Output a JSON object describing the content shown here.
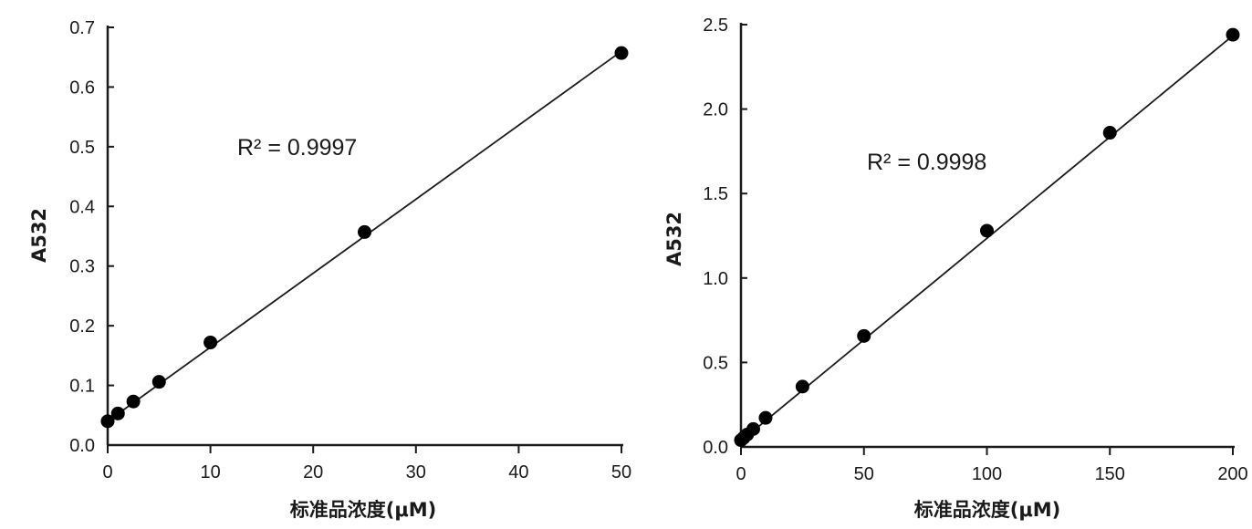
{
  "chart_data": [
    {
      "type": "scatter",
      "xlabel": "标准品浓度(μM)",
      "ylabel": "A532",
      "annotation": "R² = 0.9997",
      "xlim": [
        0,
        50
      ],
      "ylim": [
        0,
        0.7
      ],
      "x_ticks": [
        0,
        10,
        20,
        30,
        40,
        50
      ],
      "x_tick_labels": [
        "0",
        "10",
        "20",
        "30",
        "40",
        "50"
      ],
      "y_ticks": [
        0,
        0.1,
        0.2,
        0.3,
        0.4,
        0.5,
        0.6,
        0.7
      ],
      "y_tick_labels": [
        "0.0",
        "0.1",
        "0.2",
        "0.3",
        "0.4",
        "0.5",
        "0.6",
        "0.7"
      ],
      "points": [
        {
          "x": 0,
          "y": 0.04
        },
        {
          "x": 1,
          "y": 0.053
        },
        {
          "x": 2.5,
          "y": 0.073
        },
        {
          "x": 5,
          "y": 0.106
        },
        {
          "x": 10,
          "y": 0.172
        },
        {
          "x": 25,
          "y": 0.357
        },
        {
          "x": 50,
          "y": 0.657
        }
      ],
      "fit_line": {
        "x": [
          0,
          50
        ],
        "y": [
          0.04,
          0.66
        ]
      },
      "grid": false,
      "marker_color": "#000000"
    },
    {
      "type": "scatter",
      "xlabel": "标准品浓度(μM)",
      "ylabel": "A532",
      "annotation": "R² = 0.9998",
      "xlim": [
        0,
        200
      ],
      "ylim": [
        0,
        2.5
      ],
      "x_ticks": [
        0,
        50,
        100,
        150,
        200
      ],
      "x_tick_labels": [
        "0",
        "50",
        "100",
        "150",
        "200"
      ],
      "y_ticks": [
        0,
        0.5,
        1.0,
        1.5,
        2.0,
        2.5
      ],
      "y_tick_labels": [
        "0.0",
        "0.5",
        "1.0",
        "1.5",
        "2.0",
        "2.5"
      ],
      "points": [
        {
          "x": 0,
          "y": 0.04
        },
        {
          "x": 1,
          "y": 0.053
        },
        {
          "x": 2.5,
          "y": 0.073
        },
        {
          "x": 5,
          "y": 0.106
        },
        {
          "x": 10,
          "y": 0.172
        },
        {
          "x": 25,
          "y": 0.357
        },
        {
          "x": 50,
          "y": 0.657
        },
        {
          "x": 100,
          "y": 1.28
        },
        {
          "x": 150,
          "y": 1.86
        },
        {
          "x": 200,
          "y": 2.44
        }
      ],
      "fit_line": {
        "x": [
          0,
          200
        ],
        "y": [
          0.035,
          2.435
        ]
      },
      "grid": false,
      "marker_color": "#000000"
    }
  ]
}
